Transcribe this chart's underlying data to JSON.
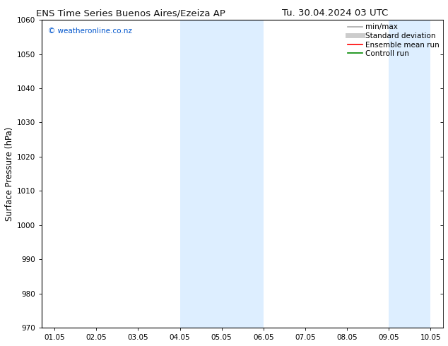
{
  "title_left": "ENS Time Series Buenos Aires/Ezeiza AP",
  "title_right": "Tu. 30.04.2024 03 UTC",
  "ylabel": "Surface Pressure (hPa)",
  "ylim": [
    970,
    1060
  ],
  "yticks": [
    970,
    980,
    990,
    1000,
    1010,
    1020,
    1030,
    1040,
    1050,
    1060
  ],
  "xtick_labels": [
    "01.05",
    "02.05",
    "03.05",
    "04.05",
    "05.05",
    "06.05",
    "07.05",
    "08.05",
    "09.05",
    "10.05"
  ],
  "xlim": [
    0,
    9
  ],
  "shaded_regions": [
    {
      "xstart": 3.0,
      "xend": 5.0
    },
    {
      "xstart": 8.0,
      "xend": 9.0
    }
  ],
  "shaded_color": "#ddeeff",
  "background_color": "#ffffff",
  "watermark_text": "© weatheronline.co.nz",
  "watermark_color": "#0055cc",
  "legend_entries": [
    {
      "label": "min/max",
      "color": "#aaaaaa",
      "linestyle": "-",
      "linewidth": 1.2
    },
    {
      "label": "Standard deviation",
      "color": "#cccccc",
      "linestyle": "-",
      "linewidth": 5
    },
    {
      "label": "Ensemble mean run",
      "color": "#ff0000",
      "linestyle": "-",
      "linewidth": 1.2
    },
    {
      "label": "Controll run",
      "color": "#008800",
      "linestyle": "-",
      "linewidth": 1.2
    }
  ],
  "title_fontsize": 9.5,
  "tick_fontsize": 7.5,
  "ylabel_fontsize": 8.5,
  "watermark_fontsize": 7.5,
  "legend_fontsize": 7.5
}
